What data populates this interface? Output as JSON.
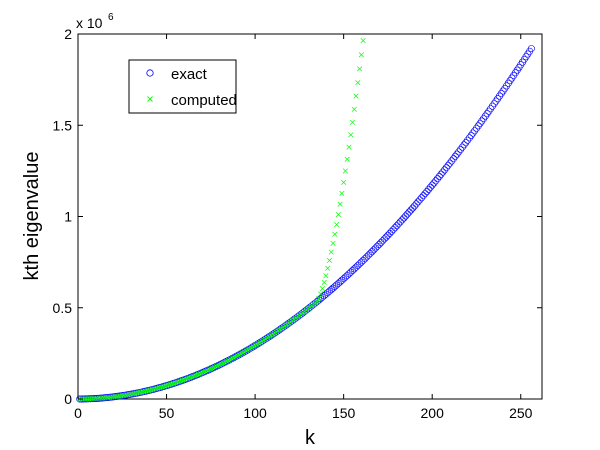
{
  "chart_data": {
    "type": "scatter",
    "title": "",
    "xlabel": "k",
    "ylabel": "kth eigenvalue",
    "xlim": [
      0,
      262
    ],
    "ylim": [
      0,
      2000000
    ],
    "xticks": [
      0,
      50,
      100,
      150,
      200,
      250
    ],
    "xtick_labels": [
      "0",
      "50",
      "100",
      "150",
      "200",
      "250"
    ],
    "yticks": [
      0,
      500000,
      1000000,
      1500000,
      2000000
    ],
    "ytick_labels": [
      "0",
      "0.5",
      "1",
      "1.5",
      "2"
    ],
    "y_exponent_label": {
      "prefix": "x 10",
      "power": "6"
    },
    "grid": false,
    "legend_position": "top-left",
    "series": [
      {
        "name": "exact",
        "marker": "circle",
        "color": "#0000ff",
        "formula": "29.3 * k^2",
        "k_range": [
          1,
          256
        ]
      },
      {
        "name": "computed",
        "marker": "x",
        "color": "#00ff00",
        "formula": "29.3 * k^2 for k <= 135; 29.3 * k^2 + 9085 * (k - 135)^1.5 for k > 135",
        "k_range": [
          1,
          182
        ]
      }
    ]
  }
}
